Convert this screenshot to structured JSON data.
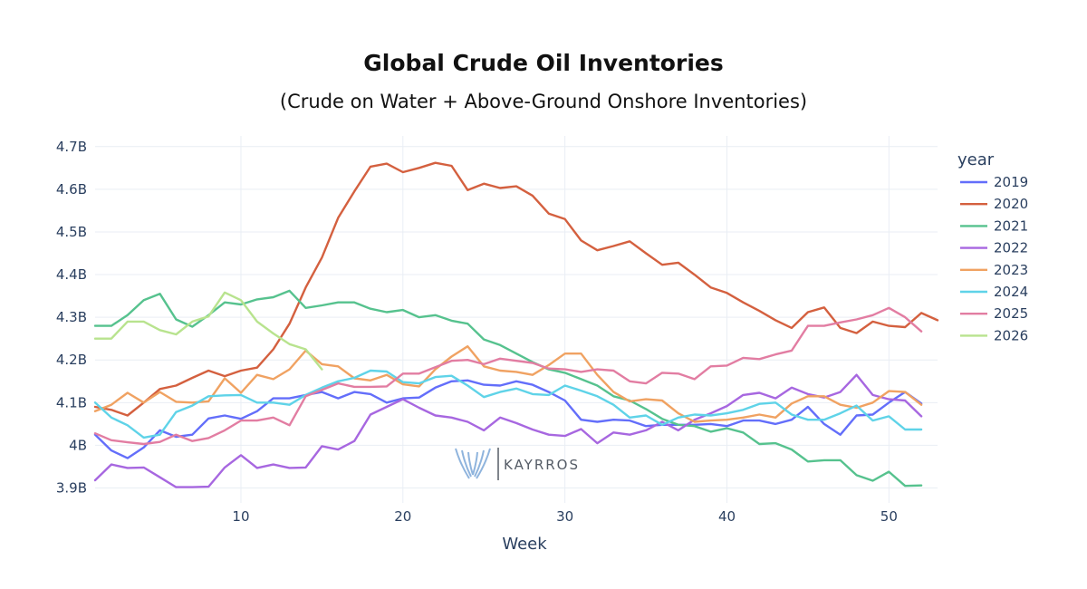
{
  "chart_data": {
    "type": "line",
    "title": "Global Crude Oil Inventories",
    "subtitle": "(Crude on Water + Above-Ground Onshore Inventories)",
    "xlabel": "Week",
    "ylabel": "",
    "xlim": [
      1,
      53
    ],
    "ylim": [
      3.865,
      4.725
    ],
    "x_ticks": [
      10,
      20,
      30,
      40,
      50
    ],
    "y_ticks": [
      3.9,
      4.0,
      4.1,
      4.2,
      4.3,
      4.4,
      4.5,
      4.6,
      4.7
    ],
    "y_tick_labels": [
      "3.9B",
      "4B",
      "4.1B",
      "4.2B",
      "4.3B",
      "4.4B",
      "4.5B",
      "4.6B",
      "4.7B"
    ],
    "grid": true,
    "legend_title": "year",
    "legend_position": "right",
    "watermark": "KAYRROS",
    "series": [
      {
        "name": "2019",
        "color": "#636efa",
        "values": [
          4.025,
          3.988,
          3.97,
          3.995,
          4.035,
          4.02,
          4.025,
          4.063,
          4.07,
          4.062,
          4.08,
          4.11,
          4.11,
          4.118,
          4.125,
          4.11,
          4.125,
          4.12,
          4.1,
          4.11,
          4.112,
          4.135,
          4.15,
          4.152,
          4.142,
          4.14,
          4.15,
          4.142,
          4.125,
          4.105,
          4.06,
          4.055,
          4.06,
          4.058,
          4.045,
          4.048,
          4.048,
          4.048,
          4.05,
          4.045,
          4.058,
          4.058,
          4.05,
          4.06,
          4.09,
          4.05,
          4.025,
          4.07,
          4.072,
          4.1,
          4.125,
          4.098
        ]
      },
      {
        "name": "2020",
        "color": "#d4603f",
        "values": [
          4.09,
          4.083,
          4.07,
          4.1,
          4.132,
          4.14,
          4.158,
          4.175,
          4.162,
          4.175,
          4.182,
          4.225,
          4.285,
          4.37,
          4.44,
          4.533,
          4.595,
          4.653,
          4.66,
          4.64,
          4.65,
          4.662,
          4.655,
          4.598,
          4.613,
          4.603,
          4.607,
          4.585,
          4.543,
          4.53,
          4.48,
          4.457,
          4.467,
          4.478,
          4.45,
          4.423,
          4.428,
          4.4,
          4.37,
          4.357,
          4.335,
          4.315,
          4.293,
          4.275,
          4.312,
          4.323,
          4.275,
          4.263,
          4.29,
          4.28,
          4.277,
          4.31,
          4.293
        ]
      },
      {
        "name": "2021",
        "color": "#56c28e",
        "values": [
          4.28,
          4.28,
          4.305,
          4.34,
          4.355,
          4.295,
          4.278,
          4.305,
          4.335,
          4.33,
          4.342,
          4.347,
          4.362,
          4.322,
          4.328,
          4.335,
          4.335,
          4.32,
          4.312,
          4.317,
          4.3,
          4.305,
          4.292,
          4.285,
          4.248,
          4.235,
          4.215,
          4.195,
          4.178,
          4.17,
          4.155,
          4.14,
          4.115,
          4.105,
          4.085,
          4.062,
          4.048,
          4.045,
          4.032,
          4.04,
          4.03,
          4.003,
          4.005,
          3.99,
          3.962,
          3.965,
          3.965,
          3.93,
          3.917,
          3.938,
          3.905,
          3.906
        ]
      },
      {
        "name": "2022",
        "color": "#a767e0",
        "values": [
          3.918,
          3.955,
          3.947,
          3.948,
          3.925,
          3.902,
          3.902,
          3.903,
          3.948,
          3.977,
          3.947,
          3.955,
          3.947,
          3.948,
          3.998,
          3.99,
          4.01,
          4.072,
          4.09,
          4.108,
          4.088,
          4.07,
          4.065,
          4.055,
          4.035,
          4.065,
          4.052,
          4.037,
          4.025,
          4.022,
          4.038,
          4.005,
          4.03,
          4.025,
          4.035,
          4.055,
          4.035,
          4.06,
          4.075,
          4.092,
          4.118,
          4.123,
          4.11,
          4.135,
          4.12,
          4.112,
          4.125,
          4.165,
          4.118,
          4.108,
          4.105,
          4.068
        ]
      },
      {
        "name": "2023",
        "color": "#f0a262",
        "values": [
          4.08,
          4.095,
          4.123,
          4.1,
          4.125,
          4.102,
          4.1,
          4.103,
          4.157,
          4.123,
          4.165,
          4.155,
          4.178,
          4.222,
          4.19,
          4.185,
          4.157,
          4.152,
          4.165,
          4.143,
          4.138,
          4.178,
          4.208,
          4.232,
          4.185,
          4.175,
          4.172,
          4.165,
          4.188,
          4.215,
          4.215,
          4.165,
          4.125,
          4.103,
          4.108,
          4.105,
          4.075,
          4.055,
          4.058,
          4.06,
          4.065,
          4.072,
          4.065,
          4.098,
          4.115,
          4.115,
          4.095,
          4.088,
          4.1,
          4.127,
          4.125,
          4.095
        ]
      },
      {
        "name": "2024",
        "color": "#5fd3e8",
        "values": [
          4.1,
          4.065,
          4.047,
          4.018,
          4.025,
          4.078,
          4.093,
          4.115,
          4.117,
          4.118,
          4.1,
          4.1,
          4.095,
          4.118,
          4.135,
          4.15,
          4.158,
          4.175,
          4.173,
          4.148,
          4.145,
          4.16,
          4.163,
          4.14,
          4.113,
          4.125,
          4.133,
          4.12,
          4.118,
          4.14,
          4.128,
          4.115,
          4.095,
          4.065,
          4.07,
          4.048,
          4.065,
          4.072,
          4.07,
          4.075,
          4.083,
          4.097,
          4.1,
          4.072,
          4.06,
          4.06,
          4.075,
          4.093,
          4.058,
          4.068,
          4.037,
          4.037
        ]
      },
      {
        "name": "2025",
        "color": "#e27da2",
        "values": [
          4.028,
          4.012,
          4.007,
          4.003,
          4.008,
          4.025,
          4.01,
          4.017,
          4.035,
          4.058,
          4.058,
          4.065,
          4.047,
          4.115,
          4.13,
          4.145,
          4.137,
          4.137,
          4.138,
          4.168,
          4.168,
          4.183,
          4.198,
          4.2,
          4.19,
          4.203,
          4.198,
          4.193,
          4.18,
          4.178,
          4.172,
          4.178,
          4.175,
          4.15,
          4.145,
          4.17,
          4.168,
          4.155,
          4.185,
          4.187,
          4.205,
          4.202,
          4.213,
          4.222,
          4.28,
          4.28,
          4.288,
          4.295,
          4.305,
          4.322,
          4.3,
          4.267
        ]
      },
      {
        "name": "2026",
        "color": "#b8e38e",
        "values": [
          4.25,
          4.25,
          4.29,
          4.29,
          4.27,
          4.26,
          4.29,
          4.302,
          4.358,
          4.34,
          4.29,
          4.262,
          4.237,
          4.225,
          4.178
        ]
      }
    ]
  }
}
